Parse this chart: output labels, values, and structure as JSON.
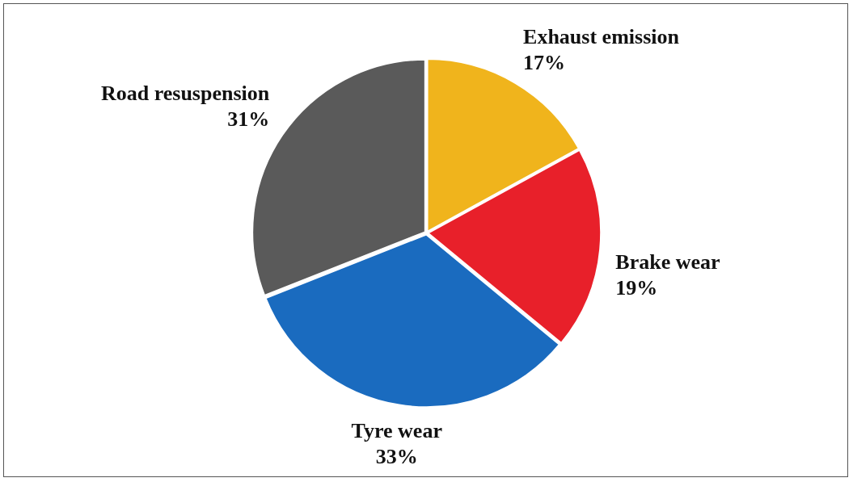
{
  "chart_data": {
    "type": "pie",
    "categories": [
      "Exhaust emission",
      "Brake wear",
      "Tyre wear",
      "Road resuspension"
    ],
    "values": [
      17,
      19,
      33,
      31
    ],
    "colors": [
      "#f0b41c",
      "#e8202a",
      "#1a6bbf",
      "#5a5a5a"
    ],
    "value_labels": [
      "17%",
      "19%",
      "33%",
      "31%"
    ]
  }
}
